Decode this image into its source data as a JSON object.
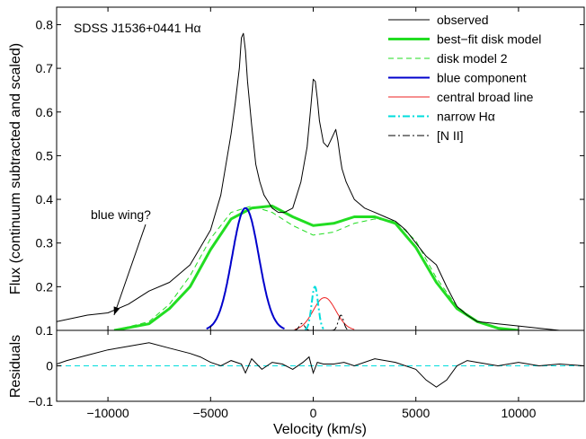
{
  "chart_data": {
    "type": "line",
    "title": "SDSS J1536+0441 Hα",
    "xlabel": "Velocity (km/s)",
    "ylabel_top": "Flux (continuum subtracted and scaled)",
    "ylabel_bottom": "Residuals",
    "xlim": [
      -12500,
      13200
    ],
    "ylim_top": [
      0.1,
      0.84
    ],
    "ylim_bottom": [
      -0.1,
      0.1
    ],
    "grid": false,
    "legend_position": "top-right",
    "x_ticks": [
      -10000,
      -5000,
      0,
      5000,
      10000
    ],
    "x_tick_labels": [
      "−10000",
      "−5000",
      "0",
      "5000",
      "10000"
    ],
    "y_ticks_top": [
      0.1,
      0.2,
      0.3,
      0.4,
      0.5,
      0.6,
      0.7,
      0.8
    ],
    "y_tick_labels_top": [
      "0.1",
      "0.2",
      "0.3",
      "0.4",
      "0.5",
      "0.6",
      "0.7",
      "0.8"
    ],
    "y_ticks_bottom": [
      -0.1,
      0,
      0.1
    ],
    "y_tick_labels_bottom": [
      "−0.1",
      "0",
      ""
    ],
    "annotation": {
      "text": "blue wing?",
      "arrow_to": [
        -9700,
        0.135
      ]
    },
    "series": [
      {
        "name": "observed",
        "color": "#000000",
        "style": "solid",
        "width": 1,
        "x": [
          -12500,
          -11000,
          -10000,
          -9000,
          -8000,
          -7000,
          -6000,
          -5500,
          -5000,
          -4500,
          -4000,
          -3800,
          -3600,
          -3500,
          -3400,
          -3300,
          -3200,
          -3000,
          -2800,
          -2600,
          -2400,
          -2200,
          -2000,
          -1700,
          -1400,
          -1000,
          -600,
          -300,
          -100,
          0,
          100,
          200,
          300,
          500,
          700,
          900,
          1100,
          1200,
          1300,
          1400,
          1600,
          1800,
          2000,
          2500,
          3000,
          3500,
          4000,
          4500,
          5000,
          5500,
          6000,
          6500,
          7000,
          7500,
          8000,
          9000,
          10000,
          11000,
          12000,
          13200
        ],
        "y": [
          0.12,
          0.135,
          0.14,
          0.16,
          0.19,
          0.21,
          0.25,
          0.29,
          0.33,
          0.41,
          0.55,
          0.62,
          0.7,
          0.77,
          0.78,
          0.74,
          0.67,
          0.57,
          0.48,
          0.44,
          0.41,
          0.395,
          0.38,
          0.37,
          0.37,
          0.38,
          0.44,
          0.52,
          0.62,
          0.675,
          0.67,
          0.63,
          0.58,
          0.53,
          0.52,
          0.54,
          0.56,
          0.535,
          0.5,
          0.47,
          0.44,
          0.42,
          0.4,
          0.38,
          0.37,
          0.36,
          0.35,
          0.33,
          0.3,
          0.27,
          0.25,
          0.2,
          0.155,
          0.135,
          0.12,
          0.115,
          0.11,
          0.105,
          0.1,
          0.1
        ]
      },
      {
        "name": "best−fit disk model",
        "color": "#22dd22",
        "style": "solid",
        "width": 3,
        "x": [
          -9700,
          -8000,
          -7000,
          -6000,
          -5000,
          -4000,
          -3000,
          -2000,
          -1000,
          0,
          1000,
          2000,
          3000,
          4000,
          5000,
          6000,
          7000,
          8000,
          9000,
          10000
        ],
        "y": [
          0.1,
          0.115,
          0.15,
          0.2,
          0.285,
          0.355,
          0.38,
          0.385,
          0.36,
          0.34,
          0.345,
          0.36,
          0.36,
          0.345,
          0.29,
          0.21,
          0.15,
          0.12,
          0.105,
          0.1
        ]
      },
      {
        "name": "disk model 2",
        "color": "#22dd22",
        "style": "dashed",
        "width": 1,
        "x": [
          -9700,
          -8000,
          -7000,
          -6000,
          -5000,
          -4000,
          -3000,
          -2000,
          -1000,
          0,
          1000,
          2000,
          3000,
          4000,
          5000,
          6000,
          7000,
          8000,
          9000,
          10000
        ],
        "y": [
          0.1,
          0.12,
          0.16,
          0.225,
          0.31,
          0.37,
          0.385,
          0.37,
          0.34,
          0.318,
          0.325,
          0.345,
          0.355,
          0.35,
          0.305,
          0.22,
          0.155,
          0.12,
          0.105,
          0.1
        ]
      },
      {
        "name": "blue component",
        "color": "#0000cc",
        "style": "solid",
        "width": 2,
        "gaussian": {
          "center": -3300,
          "sigma": 650,
          "amp": 0.28,
          "base": 0.1,
          "range": [
            -5200,
            -1400
          ]
        }
      },
      {
        "name": "central broad line",
        "color": "#ee2222",
        "style": "solid",
        "width": 1,
        "gaussian": {
          "center": 550,
          "sigma": 550,
          "amp": 0.075,
          "base": 0.1,
          "range": [
            -900,
            2000
          ]
        }
      },
      {
        "name": "narrow Hα",
        "color": "#00dddd",
        "style": "dashdot",
        "width": 2,
        "gaussian": {
          "center": 80,
          "sigma": 160,
          "amp": 0.1,
          "base": 0.1,
          "range": [
            -400,
            500
          ]
        }
      },
      {
        "name": "[N II]",
        "color": "#000000",
        "style": "dashdot",
        "width": 1,
        "gaussian_multi": [
          {
            "center": -550,
            "sigma": 130,
            "amp": 0.016
          },
          {
            "center": 1350,
            "sigma": 130,
            "amp": 0.035
          }
        ],
        "base": 0.1,
        "range": [
          -950,
          1750
        ]
      }
    ],
    "residuals": {
      "color": "#000000",
      "width": 1,
      "x": [
        -12500,
        -12000,
        -11000,
        -10000,
        -9000,
        -8000,
        -7000,
        -6000,
        -5500,
        -5000,
        -4500,
        -4000,
        -3500,
        -3300,
        -3000,
        -2500,
        -2000,
        -1500,
        -1000,
        -500,
        -200,
        0,
        200,
        500,
        1000,
        1500,
        2000,
        3000,
        4000,
        5000,
        5500,
        6000,
        6500,
        7000,
        7500,
        8000,
        9000,
        10000,
        11000,
        12000,
        13200
      ],
      "y": [
        0.005,
        0.015,
        0.03,
        0.045,
        0.055,
        0.065,
        0.05,
        0.035,
        0.025,
        0.01,
        0.0,
        0.015,
        0.005,
        -0.02,
        0.02,
        -0.01,
        0.01,
        0.005,
        -0.01,
        0.01,
        0.025,
        -0.02,
        0.01,
        0.005,
        0.005,
        0.01,
        0.0,
        0.02,
        0.01,
        -0.01,
        -0.04,
        -0.06,
        -0.04,
        0.0,
        0.015,
        0.01,
        0.0,
        0.01,
        0.0,
        0.005,
        0.0
      ]
    },
    "zero_line": {
      "color": "#00dddd",
      "style": "dashed"
    }
  }
}
